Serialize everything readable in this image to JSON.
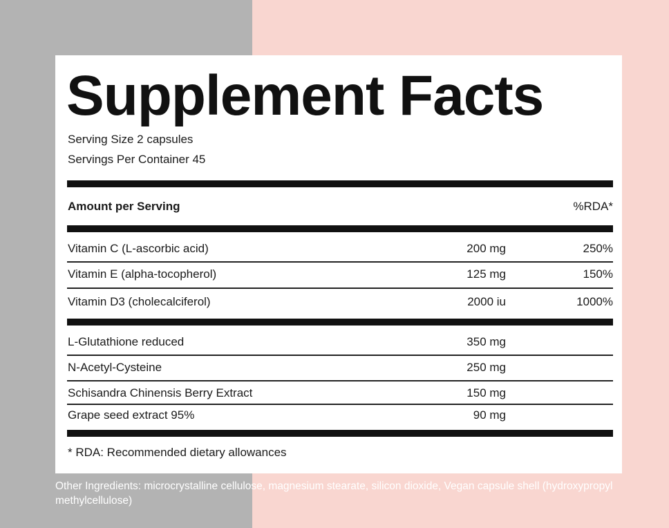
{
  "header": {
    "title": "Supplement Facts",
    "serving_size": "Serving Size 2 capsules",
    "servings_per_container": "Servings Per Container 45"
  },
  "table": {
    "header": {
      "amount": "Amount per Serving",
      "rda": "%RDA*"
    },
    "vitamins": [
      [
        "Vitamin C (L-ascorbic acid)",
        "200 mg",
        "250%"
      ],
      [
        "Vitamin E (alpha-tocopherol)",
        "125 mg",
        "150%"
      ],
      [
        "Vitamin D3 (cholecalciferol)",
        "2000 iu",
        "1000%"
      ]
    ],
    "others": [
      [
        "L-Glutathione reduced",
        "350 mg"
      ],
      [
        "N-Acetyl-Cysteine",
        "250 mg"
      ],
      [
        "Schisandra Chinensis Berry Extract",
        "150 mg"
      ],
      [
        "Grape seed extract 95%",
        "90 mg"
      ]
    ]
  },
  "footnote": "* RDA: Recommended dietary allowances",
  "other_ingredients": "Other Ingredients: microcrystalline cellulose, magnesium stearate, silicon dioxide, Vegan capsule shell (hydroxypropyl methylcellulose)"
}
